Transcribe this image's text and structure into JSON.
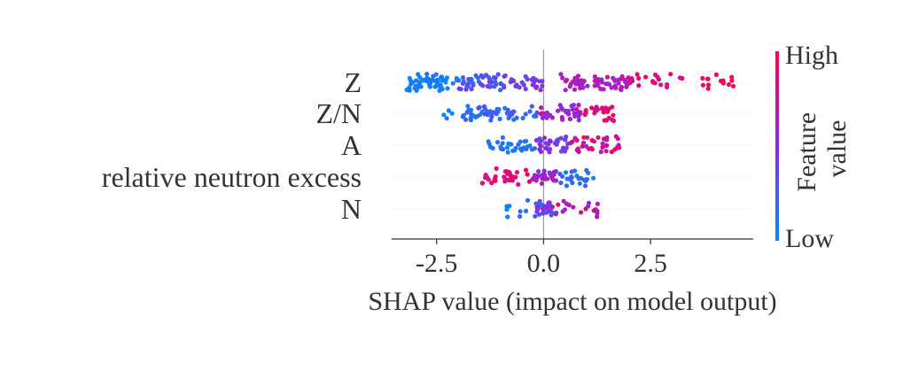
{
  "chart_data": {
    "type": "scatter",
    "subtype": "shap-beeswarm",
    "title": "",
    "xlabel": "SHAP value (impact on model output)",
    "ylabel": "",
    "xlim": [
      -3.55,
      4.9
    ],
    "xticks": [
      -2.5,
      0.0,
      2.5
    ],
    "xtick_labels": [
      "-2.5",
      "0.0",
      "2.5"
    ],
    "features": [
      "Z",
      "Z/N",
      "A",
      "relative neutron excess",
      "N"
    ],
    "colorbar": {
      "label": "Feature value",
      "high_label": "High",
      "low_label": "Low",
      "high_color": "#ff0051",
      "low_color": "#008bfb"
    },
    "series": [
      {
        "name": "Z",
        "segments": [
          {
            "range": [
              -3.25,
              -2.0
            ],
            "n": 55,
            "v": [
              0.0,
              0.15
            ]
          },
          {
            "range": [
              -2.0,
              -0.9
            ],
            "n": 45,
            "v": [
              0.1,
              0.45
            ]
          },
          {
            "range": [
              -0.9,
              0.0
            ],
            "n": 25,
            "v": [
              0.35,
              0.55
            ]
          },
          {
            "range": [
              0.4,
              2.0
            ],
            "n": 60,
            "v": [
              0.5,
              0.8
            ]
          },
          {
            "range": [
              2.0,
              3.3
            ],
            "n": 20,
            "v": [
              0.75,
              0.95
            ]
          },
          {
            "range": [
              3.7,
              4.45
            ],
            "n": 14,
            "v": [
              0.9,
              1.0
            ]
          }
        ]
      },
      {
        "name": "Z/N",
        "segments": [
          {
            "range": [
              -2.35,
              -1.2
            ],
            "n": 14,
            "v": [
              0.0,
              0.15
            ]
          },
          {
            "range": [
              -1.9,
              -0.1
            ],
            "n": 45,
            "v": [
              0.05,
              0.35
            ]
          },
          {
            "range": [
              -0.1,
              0.9
            ],
            "n": 40,
            "v": [
              0.45,
              0.75
            ]
          },
          {
            "range": [
              0.9,
              1.65
            ],
            "n": 25,
            "v": [
              0.75,
              1.0
            ]
          }
        ]
      },
      {
        "name": "A",
        "segments": [
          {
            "range": [
              -1.4,
              -0.2
            ],
            "n": 30,
            "v": [
              0.0,
              0.25
            ]
          },
          {
            "range": [
              -0.2,
              0.6
            ],
            "n": 30,
            "v": [
              0.3,
              0.6
            ]
          },
          {
            "range": [
              0.6,
              1.8
            ],
            "n": 35,
            "v": [
              0.6,
              0.95
            ]
          }
        ]
      },
      {
        "name": "relative neutron excess",
        "segments": [
          {
            "range": [
              -1.45,
              -0.3
            ],
            "n": 35,
            "v": [
              0.7,
              1.0
            ]
          },
          {
            "range": [
              -0.3,
              0.3
            ],
            "n": 30,
            "v": [
              0.45,
              0.7
            ]
          },
          {
            "range": [
              0.3,
              1.2
            ],
            "n": 25,
            "v": [
              0.0,
              0.3
            ]
          }
        ]
      },
      {
        "name": "N",
        "segments": [
          {
            "range": [
              -0.9,
              -0.2
            ],
            "n": 8,
            "v": [
              0.0,
              0.2
            ]
          },
          {
            "range": [
              -0.2,
              0.2
            ],
            "n": 30,
            "v": [
              0.2,
              0.55
            ]
          },
          {
            "range": [
              0.2,
              1.3
            ],
            "n": 20,
            "v": [
              0.5,
              0.9
            ]
          }
        ]
      }
    ]
  }
}
